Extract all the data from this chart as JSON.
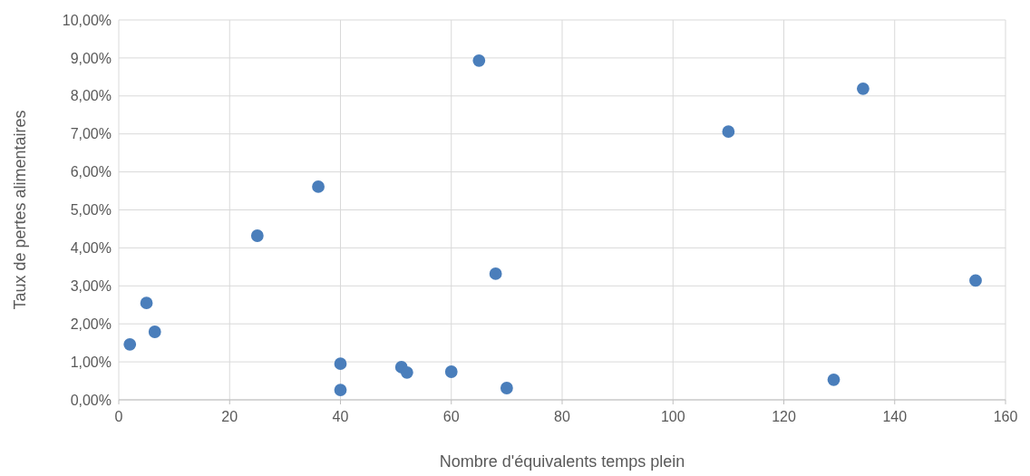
{
  "chart_data": {
    "type": "scatter",
    "xlabel": "Nombre d'équivalents temps plein",
    "ylabel": "Taux de pertes alimentaires",
    "x": [
      2,
      5,
      6.5,
      25,
      36,
      40,
      40,
      51,
      52,
      60,
      65,
      68,
      70,
      110,
      129,
      134.3,
      154.6
    ],
    "series": [
      {
        "color": "#4a7ebb",
        "values": [
          1.46,
          2.55,
          1.79,
          4.32,
          5.61,
          0.95,
          0.26,
          0.86,
          0.72,
          0.74,
          8.93,
          3.32,
          0.31,
          7.06,
          0.53,
          8.19,
          3.14
        ]
      }
    ],
    "xlim": [
      0,
      160
    ],
    "xticks": [
      0,
      20,
      40,
      60,
      80,
      100,
      120,
      140,
      160
    ],
    "ylim": [
      0,
      10
    ],
    "yticks": [
      {
        "value": 0,
        "label": "0,00%"
      },
      {
        "value": 1,
        "label": "1,00%"
      },
      {
        "value": 2,
        "label": "2,00%"
      },
      {
        "value": 3,
        "label": "3,00%"
      },
      {
        "value": 4,
        "label": "4,00%"
      },
      {
        "value": 5,
        "label": "5,00%"
      },
      {
        "value": 6,
        "label": "6,00%"
      },
      {
        "value": 7,
        "label": "7,00%"
      },
      {
        "value": 8,
        "label": "8,00%"
      },
      {
        "value": 9,
        "label": "9,00%"
      },
      {
        "value": 10,
        "label": "10,00%"
      }
    ],
    "grid": true,
    "marker": "circle"
  }
}
